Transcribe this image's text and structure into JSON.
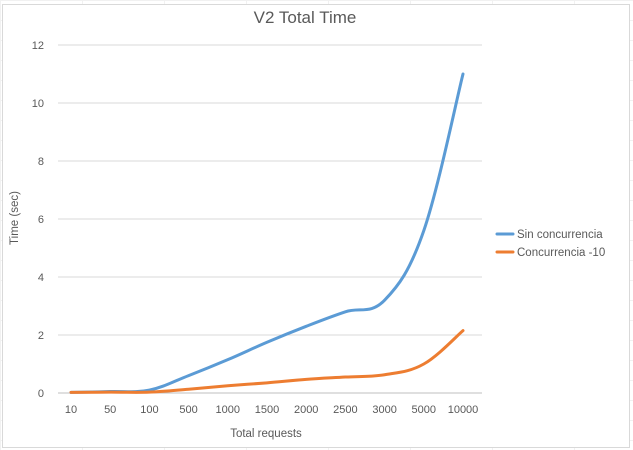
{
  "chart_data": {
    "type": "line",
    "title": "V2 Total Time",
    "xlabel": "Total requests",
    "ylabel": "Time (sec)",
    "categories": [
      "10",
      "50",
      "100",
      "500",
      "1000",
      "1500",
      "2000",
      "2500",
      "3000",
      "5000",
      "10000"
    ],
    "ylim": [
      0,
      12
    ],
    "yticks": [
      "0",
      "2",
      "4",
      "6",
      "8",
      "10",
      "12"
    ],
    "grid": true,
    "legend_position": "right",
    "series": [
      {
        "name": "Sin concurrencia",
        "color": "#5b9bd5",
        "values": [
          0.02,
          0.05,
          0.1,
          0.6,
          1.15,
          1.75,
          2.3,
          2.8,
          3.2,
          5.6,
          11.0
        ]
      },
      {
        "name": "Concurrencia -10",
        "color": "#ed7d31",
        "values": [
          0.02,
          0.03,
          0.03,
          0.13,
          0.25,
          0.35,
          0.47,
          0.55,
          0.63,
          1.0,
          2.15
        ]
      }
    ]
  }
}
